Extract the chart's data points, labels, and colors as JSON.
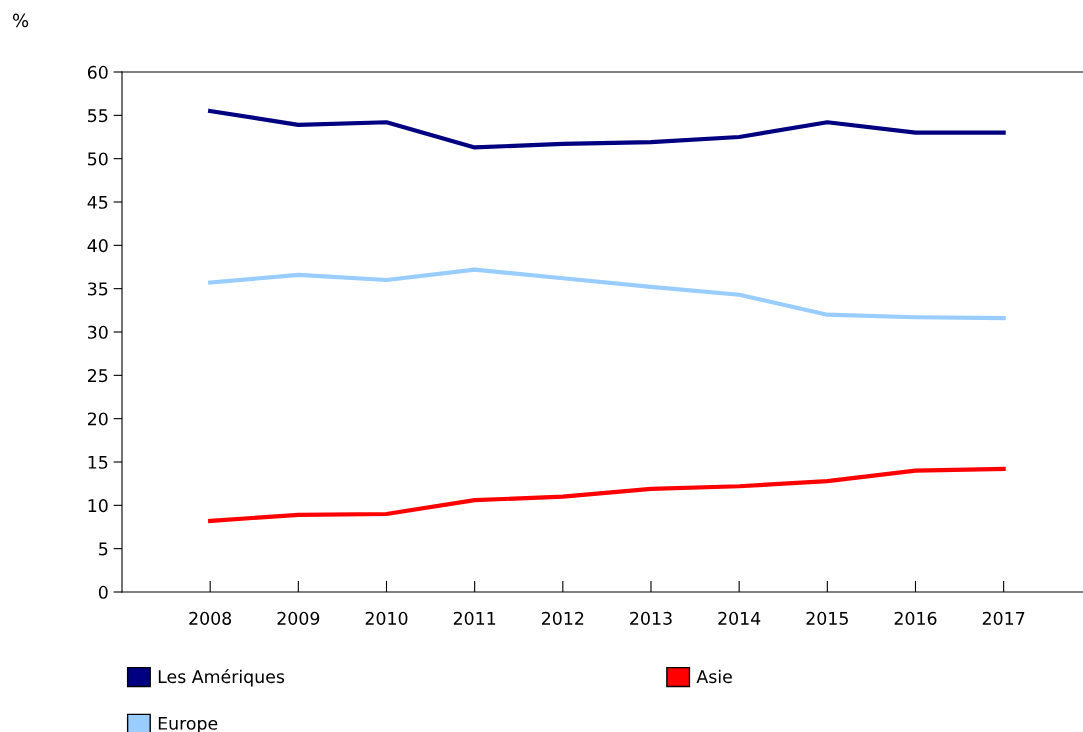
{
  "chart_data": {
    "type": "line",
    "ylabel": "%",
    "categories": [
      "2008",
      "2009",
      "2010",
      "2011",
      "2012",
      "2013",
      "2014",
      "2015",
      "2016",
      "2017"
    ],
    "series": [
      {
        "name": "Les Amériques",
        "color": "#000080",
        "values": [
          55.5,
          53.9,
          54.2,
          51.3,
          51.7,
          51.9,
          52.5,
          54.2,
          53.0,
          53.0
        ]
      },
      {
        "name": "Europe",
        "color": "#99ccff",
        "values": [
          35.7,
          36.6,
          36.0,
          37.2,
          36.2,
          35.2,
          34.3,
          32.0,
          31.7,
          31.6
        ]
      },
      {
        "name": "Asie",
        "color": "#ff0000",
        "values": [
          8.2,
          8.9,
          9.0,
          10.6,
          11.0,
          11.9,
          12.2,
          12.8,
          14.0,
          14.2
        ]
      }
    ],
    "ylim": [
      0,
      60
    ],
    "yticks": [
      0,
      5,
      10,
      15,
      20,
      25,
      30,
      35,
      40,
      45,
      50,
      55,
      60
    ],
    "grid": false,
    "legend": "bottom",
    "marker": "none",
    "line_style": "solid"
  }
}
